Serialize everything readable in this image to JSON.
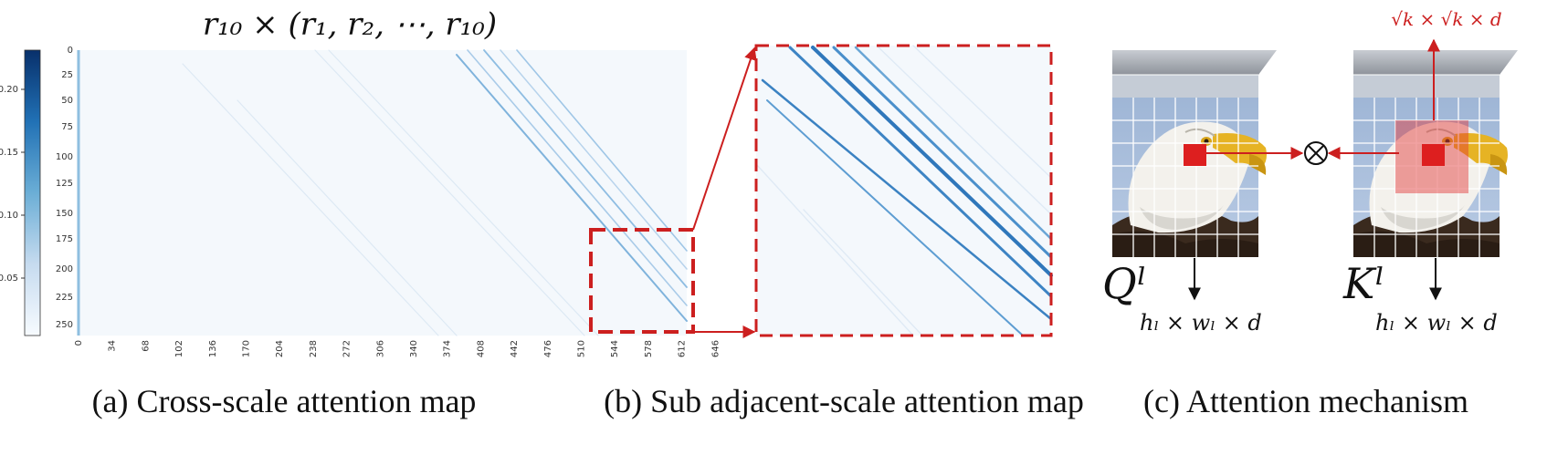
{
  "panel_a": {
    "title": "r₁₀ × (r₁, r₂, ⋯, r₁₀)",
    "colorbar_ticks": [
      "0.20",
      "0.15",
      "0.10",
      "0.05"
    ],
    "y_ticks": [
      "0",
      "25",
      "50",
      "75",
      "100",
      "125",
      "150",
      "175",
      "200",
      "225",
      "250"
    ],
    "x_ticks": [
      "0",
      "34",
      "68",
      "102",
      "136",
      "170",
      "204",
      "238",
      "272",
      "306",
      "340",
      "374",
      "408",
      "442",
      "476",
      "510",
      "544",
      "578",
      "612",
      "646"
    ],
    "caption": "(a) Cross-scale attention map"
  },
  "panel_b": {
    "caption": "(b) Sub adjacent-scale attention map"
  },
  "panel_c": {
    "window_label": "√k × √k × d",
    "query_label": "Qˡ",
    "key_label": "Kˡ",
    "query_dims": "hₗ × wₗ × d",
    "key_dims": "hₗ × wₗ × d",
    "operator": "⊗",
    "caption": "(c) Attention mechanism"
  },
  "colors": {
    "accent_red": "#cc1f1f",
    "heat_low": "#f4f8fc",
    "heat_high": "#08306b",
    "grid": "#ffffff"
  },
  "icons": {
    "eagle_image": "eagle-photo-icon"
  }
}
